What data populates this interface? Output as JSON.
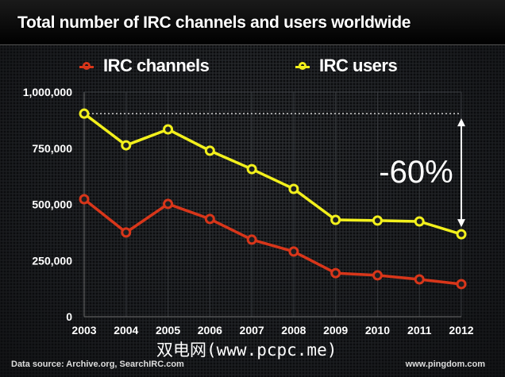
{
  "chart_data": {
    "type": "line",
    "title": "Total number of IRC channels and users worldwide",
    "xlabel": "",
    "ylabel": "",
    "x": [
      "2003",
      "2004",
      "2005",
      "2006",
      "2007",
      "2008",
      "2009",
      "2010",
      "2011",
      "2012"
    ],
    "ylim": [
      0,
      1000000
    ],
    "yticks": [
      0,
      250000,
      500000,
      750000,
      1000000
    ],
    "ytick_labels": [
      "0",
      "250,000",
      "500,000",
      "750,000",
      "1,000,000"
    ],
    "grid": "vertical",
    "legend_position": "top",
    "series": [
      {
        "name": "IRC channels",
        "color": "#d8361a",
        "values": [
          523000,
          375000,
          502000,
          435000,
          343000,
          290000,
          194000,
          184000,
          166000,
          145000
        ]
      },
      {
        "name": "IRC users",
        "color": "#f2f01c",
        "values": [
          904000,
          763000,
          834000,
          739000,
          657000,
          569000,
          431000,
          428000,
          424000,
          367000
        ]
      }
    ],
    "annotations": [
      {
        "text": "-60%",
        "description": "Drop in IRC users from 2003 to 2012, shown with a double-headed arrow and dotted reference line at the 2003 level",
        "from_value": 904000,
        "to_value": 367000,
        "at_x": "2012"
      }
    ]
  },
  "footer": {
    "source": "Data source: Archive.org, SearchIRC.com",
    "site": "www.pingdom.com",
    "watermark": "双电网(www.pcpc.me)"
  }
}
